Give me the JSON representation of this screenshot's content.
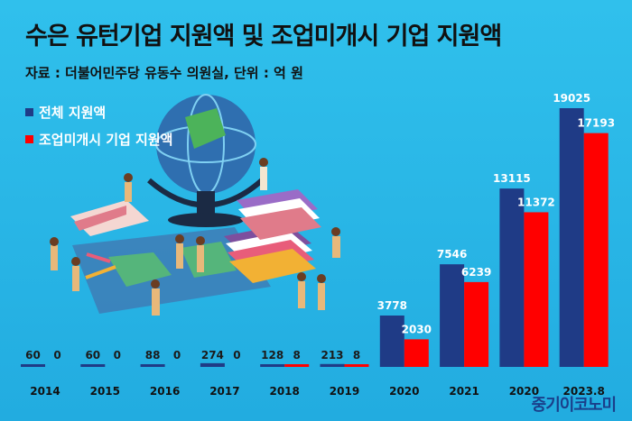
{
  "title": "수은 유턴기업 지원액 및 조업미개시 기업 지원액",
  "source": "자료 : 더불어민주당 유동수 의원실, 단위 : 억 원",
  "logo": "중기이코노미",
  "colors": {
    "background": "#2bb8e6",
    "series_total": "#1f3b86",
    "series_unstarted": "#ff0000",
    "value_text": "#ffffff"
  },
  "chart_data": {
    "type": "bar",
    "title": "수은 유턴기업 지원액 및 조업미개시 기업 지원액",
    "subtitle": "자료 : 더불어민주당 유동수 의원실, 단위 : 억 원",
    "categories": [
      "2014",
      "2015",
      "2016",
      "2017",
      "2018",
      "2019",
      "2020",
      "2021",
      "2020",
      "2023.8"
    ],
    "series": [
      {
        "name": "전체 지원액",
        "color": "#1f3b86",
        "values": [
          60,
          60,
          88,
          274,
          128,
          213,
          3778,
          7546,
          13115,
          19025
        ]
      },
      {
        "name": "조업미개시 기업 지원액",
        "color": "#ff0000",
        "values": [
          0,
          0,
          0,
          0,
          8,
          8,
          2030,
          6239,
          11372,
          17193
        ]
      }
    ],
    "legend": "top-left",
    "grid": false,
    "ylim": [
      0,
      19025
    ]
  }
}
